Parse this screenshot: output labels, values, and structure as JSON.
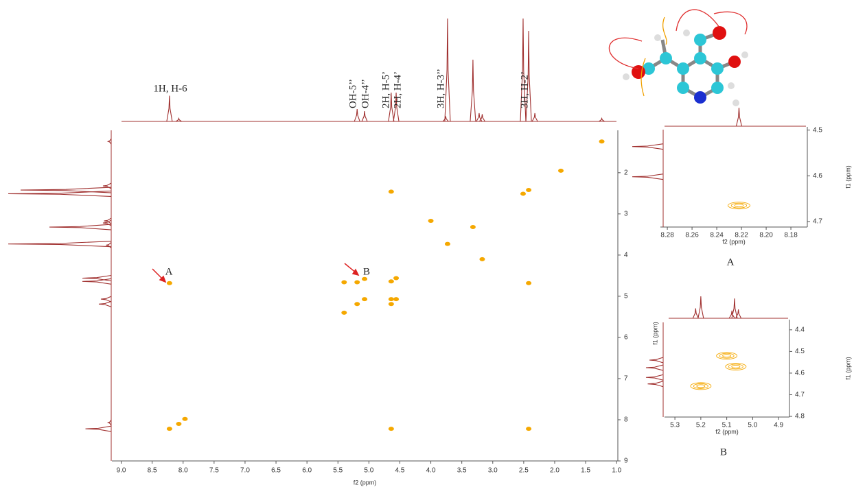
{
  "chart_data": [
    {
      "type": "noesy",
      "x_label": "f2 (ppm)",
      "xlim": [
        9.15,
        0.98
      ],
      "ylim": [
        0.97,
        9.0
      ],
      "xticks": [
        {
          "value": 9,
          "label": "9.0"
        },
        8.5,
        {
          "value": 8,
          "label": "8.0"
        },
        7.5,
        {
          "value": 7,
          "label": "7.0"
        },
        6.5,
        {
          "value": 6,
          "label": "6.0"
        },
        5.5,
        {
          "value": 5,
          "label": "5.0"
        },
        4.5,
        {
          "value": 4,
          "label": "4.0"
        },
        3.5,
        {
          "value": 3,
          "label": "3.0"
        },
        2.5,
        {
          "value": 2,
          "label": "2.0"
        },
        1.5,
        {
          "value": 1,
          "label": "1.0"
        }
      ],
      "yticks": [
        2,
        3,
        4,
        5,
        6,
        7,
        8,
        9
      ],
      "peak_labels": [
        "1H, H-6",
        "OH-5’’",
        "OH-4’’",
        "2H, H-5’",
        "2H, H-4’",
        "3H, H-3’’",
        "3H, H-2’"
      ],
      "arrow_labels": [
        "A",
        "B"
      ],
      "spectrum_color": "#a0302f",
      "color": "#f5a800",
      "spectrum": {
        "ppm": [
          8.22,
          8.07,
          5.19,
          5.07,
          4.64,
          4.56,
          3.76,
          3.73,
          3.32,
          3.22,
          3.17,
          2.51,
          2.42,
          2.32,
          1.24
        ],
        "intensity": [
          25,
          3,
          12,
          10,
          28,
          28,
          5,
          100,
          60,
          8,
          7,
          100,
          88,
          8,
          3
        ]
      },
      "cross_peaks": {
        "x": [
          8.22,
          8.07,
          7.97,
          8.22,
          5.19,
          5.07,
          4.64,
          4.56,
          3.73,
          3.32,
          2.51,
          2.42,
          1.24,
          5.19,
          5.07,
          4.64,
          4.56,
          4.64,
          5.4,
          5.4,
          4.64,
          2.42,
          4.64,
          2.42,
          4.0,
          3.17,
          1.9
        ],
        "y": [
          8.22,
          8.1,
          7.98,
          4.68,
          5.19,
          5.07,
          4.64,
          4.56,
          3.73,
          3.32,
          2.51,
          2.42,
          1.24,
          4.66,
          4.58,
          5.19,
          5.07,
          5.07,
          4.66,
          5.4,
          2.46,
          4.68,
          8.22,
          8.22,
          3.17,
          4.1,
          1.95
        ]
      }
    },
    {
      "type": "noesy-inset",
      "caption": "A",
      "x_label": "f2 (ppm)",
      "y_label": "f1 (ppm)",
      "xlim": [
        8.2856,
        8.1667
      ],
      "ylim": [
        4.493,
        4.712
      ],
      "xticks": [
        8.28,
        8.26,
        8.24,
        8.22,
        {
          "value": 8.2,
          "label": "8.20"
        },
        8.18
      ],
      "yticks": [
        4.5,
        4.6,
        4.7
      ],
      "spectrum_top": {
        "ppm": [
          8.222
        ],
        "intensity": [
          90
        ]
      },
      "spectrum_left": {
        "ppm": [
          4.536,
          4.602
        ],
        "intensity": [
          100,
          100
        ]
      },
      "cross_peaks": {
        "x": [
          8.222
        ],
        "y": [
          4.665
        ]
      }
    },
    {
      "type": "noesy-inset",
      "caption": "B",
      "x_label": "f2 (ppm)",
      "y_label": "f1 (ppm)",
      "xlim": [
        5.34,
        4.858
      ],
      "ylim": [
        4.353,
        4.803
      ],
      "xticks": [
        5.3,
        5.2,
        5.1,
        {
          "value": 5,
          "label": "5.0"
        },
        4.9
      ],
      "yticks": [
        4.4,
        4.5,
        4.6,
        4.7,
        4.8
      ],
      "spectrum_top": {
        "ppm": [
          5.22,
          5.2,
          5.08,
          5.07,
          5.055
        ],
        "intensity": [
          45,
          100,
          35,
          90,
          40
        ]
      },
      "spectrum_left": {
        "ppm": [
          4.54,
          4.575,
          4.62,
          4.65
        ],
        "intensity": [
          80,
          100,
          100,
          90
        ]
      },
      "cross_peaks": {
        "x": [
          5.1,
          5.065,
          5.2
        ],
        "y": [
          4.52,
          4.57,
          4.66
        ]
      }
    }
  ]
}
